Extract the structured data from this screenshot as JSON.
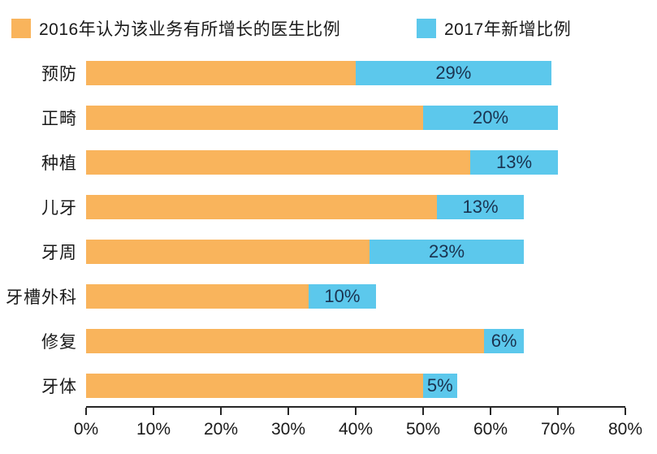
{
  "legend": {
    "series1_label": "2016年认为该业务有所增长的医生比例",
    "series2_label": "2017年新增比例"
  },
  "colors": {
    "series1": "#F9B45C",
    "series2": "#5CC8EC",
    "bar_value_text": "#1A3350",
    "axis": "#262626",
    "text": "#1A1A1A"
  },
  "chart_data": {
    "type": "bar",
    "orientation": "horizontal",
    "stacked": true,
    "title": "",
    "xlabel": "",
    "ylabel": "",
    "categories": [
      "预防",
      "正畸",
      "种植",
      "儿牙",
      "牙周",
      "牙槽外科",
      "修复",
      "牙体"
    ],
    "series": [
      {
        "name": "2016年认为该业务有所增长的医生比例",
        "color": "#F9B45C",
        "values": [
          40,
          50,
          57,
          52,
          42,
          33,
          59,
          50
        ]
      },
      {
        "name": "2017年新增比例",
        "color": "#5CC8EC",
        "values": [
          29,
          20,
          13,
          13,
          23,
          10,
          6,
          5
        ],
        "labels": [
          "29%",
          "20%",
          "13%",
          "13%",
          "23%",
          "10%",
          "6%",
          "5%"
        ]
      }
    ],
    "totals": [
      69,
      70,
      70,
      65,
      65,
      43,
      65,
      55
    ],
    "xlim": [
      0,
      80
    ],
    "x_ticks": [
      "0%",
      "10%",
      "20%",
      "30%",
      "40%",
      "50%",
      "60%",
      "70%",
      "80%"
    ],
    "grid": false,
    "legend_position": "top"
  }
}
